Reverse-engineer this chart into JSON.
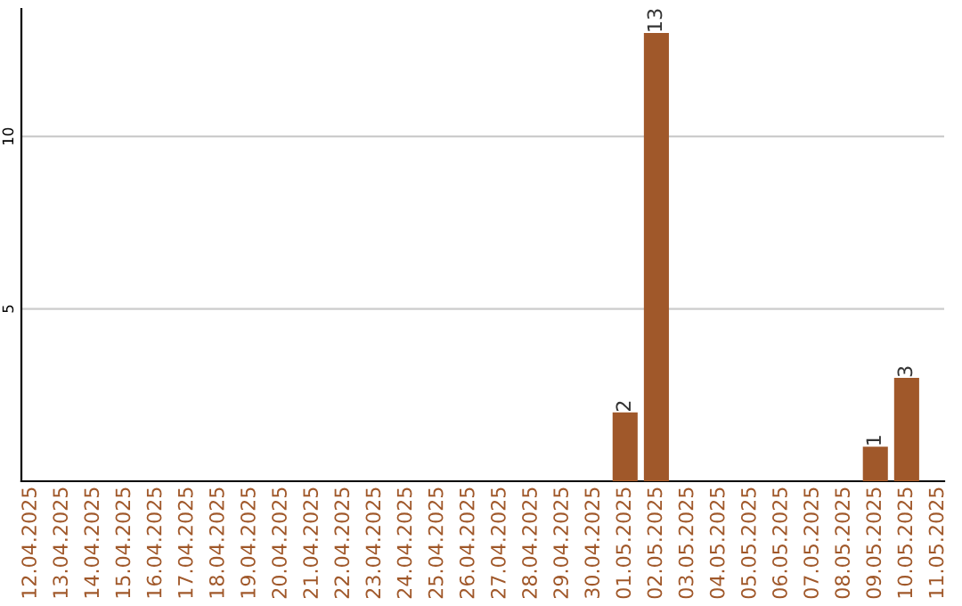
{
  "chart_data": {
    "type": "bar",
    "categories": [
      "12.04.2025",
      "13.04.2025",
      "14.04.2025",
      "15.04.2025",
      "16.04.2025",
      "17.04.2025",
      "18.04.2025",
      "19.04.2025",
      "20.04.2025",
      "21.04.2025",
      "22.04.2025",
      "23.04.2025",
      "24.04.2025",
      "25.04.2025",
      "26.04.2025",
      "27.04.2025",
      "28.04.2025",
      "29.04.2025",
      "30.04.2025",
      "01.05.2025",
      "02.05.2025",
      "03.05.2025",
      "04.05.2025",
      "05.05.2025",
      "06.05.2025",
      "07.05.2025",
      "08.05.2025",
      "09.05.2025",
      "10.05.2025",
      "11.05.2025"
    ],
    "values": [
      0,
      0,
      0,
      0,
      0,
      0,
      0,
      0,
      0,
      0,
      0,
      0,
      0,
      0,
      0,
      0,
      0,
      0,
      0,
      2,
      13,
      0,
      0,
      0,
      0,
      0,
      0,
      1,
      3,
      0
    ],
    "value_labels": [
      null,
      null,
      null,
      null,
      null,
      null,
      null,
      null,
      null,
      null,
      null,
      null,
      null,
      null,
      null,
      null,
      null,
      null,
      null,
      "2",
      "13",
      null,
      null,
      null,
      null,
      null,
      null,
      "1",
      "3",
      null
    ],
    "color": "#a0582a",
    "ylim": [
      0,
      13.7
    ],
    "yticks": [
      5,
      10
    ],
    "grid": "y"
  }
}
